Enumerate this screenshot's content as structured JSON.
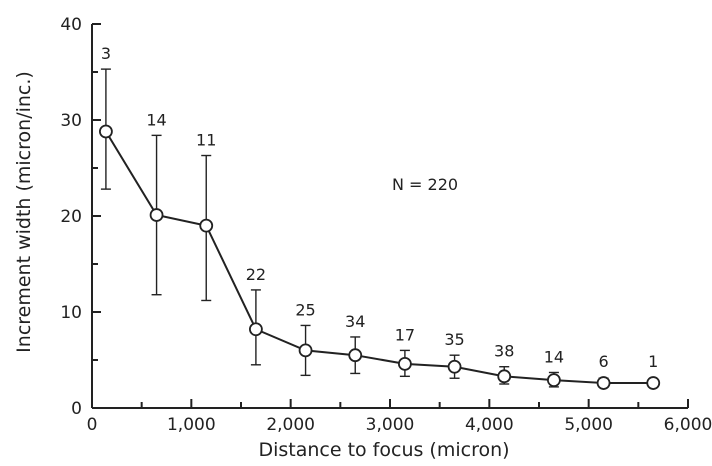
{
  "chart_data": {
    "type": "scatter",
    "xlabel": "Distance to focus (micron)",
    "ylabel": "Increment width (micron/inc.)",
    "xlim": [
      0,
      6000
    ],
    "ylim": [
      0,
      40
    ],
    "x_ticks": [
      0,
      1000,
      2000,
      3000,
      4000,
      5000,
      6000
    ],
    "x_tick_labels": [
      "0",
      "1,000",
      "2,000",
      "3,000",
      "4,000",
      "5,000",
      "6,000"
    ],
    "y_ticks": [
      0,
      10,
      20,
      30,
      40
    ],
    "y_tick_labels": [
      "0",
      "10",
      "20",
      "30",
      "40"
    ],
    "annotation": "N = 220",
    "grid": false,
    "points": [
      {
        "x": 140,
        "y": 28.8,
        "low": 22.8,
        "high": 35.3,
        "n": "3"
      },
      {
        "x": 650,
        "y": 20.1,
        "low": 11.8,
        "high": 28.4,
        "n": "14"
      },
      {
        "x": 1150,
        "y": 19.0,
        "low": 11.2,
        "high": 26.3,
        "n": "11"
      },
      {
        "x": 1650,
        "y": 8.2,
        "low": 4.5,
        "high": 12.3,
        "n": "22"
      },
      {
        "x": 2150,
        "y": 6.0,
        "low": 3.4,
        "high": 8.6,
        "n": "25"
      },
      {
        "x": 2650,
        "y": 5.5,
        "low": 3.6,
        "high": 7.4,
        "n": "34"
      },
      {
        "x": 3150,
        "y": 4.6,
        "low": 3.3,
        "high": 6.0,
        "n": "17"
      },
      {
        "x": 3650,
        "y": 4.3,
        "low": 3.1,
        "high": 5.5,
        "n": "35"
      },
      {
        "x": 4150,
        "y": 3.3,
        "low": 2.5,
        "high": 4.3,
        "n": "38"
      },
      {
        "x": 4650,
        "y": 2.9,
        "low": 2.2,
        "high": 3.7,
        "n": "14"
      },
      {
        "x": 5150,
        "y": 2.6,
        "low": 2.2,
        "high": 3.1,
        "n": "6"
      },
      {
        "x": 5650,
        "y": 2.6,
        "low": 2.6,
        "high": 2.6,
        "n": "1"
      }
    ]
  }
}
